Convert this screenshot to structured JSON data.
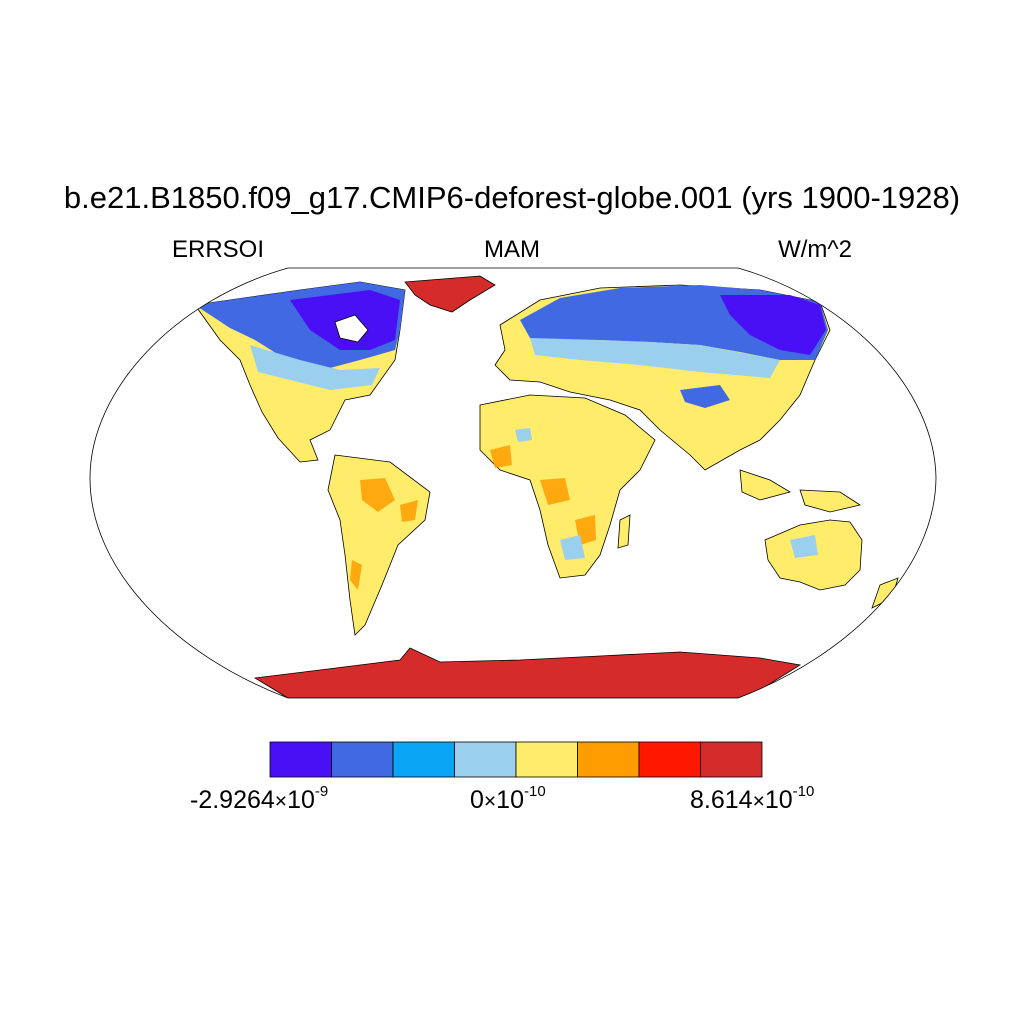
{
  "title": "b.e21.B1850.f09_g17.CMIP6-deforest-globe.001 (yrs 1900-1928)",
  "subtitle_left": "ERRSOI",
  "subtitle_center": "MAM",
  "subtitle_right": "W/m^2",
  "colorbar": {
    "colors": [
      "#4a10f5",
      "#4169e1",
      "#0aa5f5",
      "#9bcfee",
      "#ffec6a",
      "#ff9d00",
      "#ff1800",
      "#d62b2b"
    ],
    "labels": [
      {
        "mantissa": "-2.9264",
        "exponent": "-9"
      },
      {
        "mantissa": "0",
        "exponent": "-10"
      },
      {
        "mantissa": "8.614",
        "exponent": "-10"
      }
    ],
    "times_symbol": "×",
    "base": "10"
  },
  "map": {
    "projection": "Robinson",
    "ocean_color": "#ffffff",
    "coastline_color": "#000000"
  }
}
